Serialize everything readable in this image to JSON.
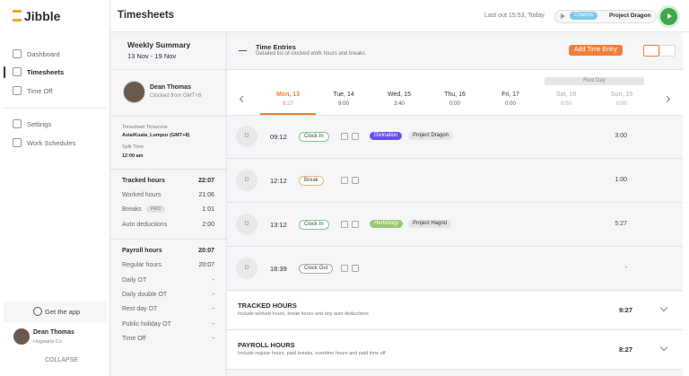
{
  "sidebar": {
    "logo": "Jibble",
    "nav": [
      "Dashboard",
      "Timesheets",
      "Time Off",
      "Settings",
      "Work Schedules"
    ],
    "get_app": "Get the app",
    "user": {
      "name": "Dean Thomas",
      "org": "Hogwarts Co"
    },
    "collapse": "COLLAPSE"
  },
  "header": {
    "title": "Timesheets",
    "last_out": "Last out 15:53, Today",
    "activity": "Charms",
    "project": "Project Dragon"
  },
  "summary": {
    "title": "Weekly Summary",
    "range": "13 Nov - 19 Nov",
    "member": {
      "name": "Dean Thomas",
      "note": "Clocked from GMT+8"
    },
    "timezone_label": "Timesheet Timezone",
    "timezone": "Asia/Kuala_Lumpur (GMT+8)",
    "split_label": "Split Time",
    "split": "12:00 am",
    "tracked": [
      {
        "label": "Tracked hours",
        "value": "22:07"
      },
      {
        "label": "Worked hours",
        "value": "21:06"
      },
      {
        "label": "Breaks",
        "badge": "PAID",
        "value": "1:01"
      },
      {
        "label": "Auto deductions",
        "value": "2:00"
      }
    ],
    "payroll": [
      {
        "label": "Payroll hours",
        "value": "20:07"
      },
      {
        "label": "Regular hours",
        "value": "20:07"
      },
      {
        "label": "Daily OT",
        "value": "-"
      },
      {
        "label": "Daily double OT",
        "value": "-"
      },
      {
        "label": "Rest day OT",
        "value": "-"
      },
      {
        "label": "Public holiday OT",
        "value": "-"
      },
      {
        "label": "Time Off",
        "value": "-"
      }
    ]
  },
  "entries": {
    "title": "Time Entries",
    "subtitle": "Detailed list of clocked work hours and breaks",
    "add_button": "Add Time Entry",
    "rest_day": "Rest Day",
    "days": [
      {
        "label": "Mon, 13",
        "hours": "9:27"
      },
      {
        "label": "Tue, 14",
        "hours": "9:00"
      },
      {
        "label": "Wed, 15",
        "hours": "3:40"
      },
      {
        "label": "Thu, 16",
        "hours": "0:00"
      },
      {
        "label": "Fri, 17",
        "hours": "0:00"
      },
      {
        "label": "Sat, 18",
        "hours": "0:00"
      },
      {
        "label": "Sun, 19",
        "hours": "0:00"
      }
    ],
    "rows": [
      {
        "avatar": "D",
        "time": "09:12",
        "type": "Clock In",
        "activity": "Divination",
        "project": "Project Dragon",
        "duration": "3:00"
      },
      {
        "avatar": "D",
        "time": "12:12",
        "type": "Break",
        "duration": "1:00"
      },
      {
        "avatar": "D",
        "time": "13:12",
        "type": "Clock In",
        "activity": "Herbology",
        "project": "Project Hagrid",
        "duration": "5:27"
      },
      {
        "avatar": "D",
        "time": "18:39",
        "type": "Clock Out",
        "duration": "-"
      }
    ],
    "totals": [
      {
        "title": "TRACKED HOURS",
        "note": "Include worked hours, break hours and any auto deductions",
        "value": "9:27"
      },
      {
        "title": "PAYROLL HOURS",
        "note": "Include regular hours, paid breaks, overtime hours and paid time off",
        "value": "8:27"
      }
    ]
  }
}
